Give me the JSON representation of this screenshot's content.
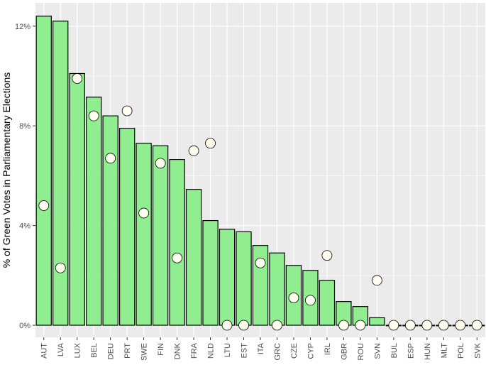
{
  "chart_data": {
    "type": "bar",
    "title": "",
    "xlabel": "",
    "ylabel": "% of Green Votes in Parliamentary Elections",
    "ylim": [
      0,
      13
    ],
    "yticks": [
      0,
      4,
      8,
      12
    ],
    "ytick_labels": [
      "0%",
      "4%",
      "8%",
      "12%"
    ],
    "grid": true,
    "categories": [
      "AUT",
      "LVA",
      "LUX",
      "BEL",
      "DEU",
      "PRT",
      "SWE",
      "FIN",
      "DNK",
      "FRA",
      "NLD",
      "LTU",
      "EST",
      "ITA",
      "GRC",
      "CZE",
      "CYP",
      "IRL",
      "GBR",
      "ROU",
      "SVN",
      "BUL",
      "ESP",
      "HUN",
      "MLT",
      "POL",
      "SVK"
    ],
    "series": [
      {
        "kind": "bar",
        "values": [
          12.4,
          12.2,
          10.1,
          9.15,
          8.4,
          7.9,
          7.3,
          7.2,
          6.65,
          5.45,
          4.2,
          3.85,
          3.75,
          3.2,
          2.9,
          2.4,
          2.2,
          1.8,
          0.95,
          0.75,
          0.3,
          0,
          0,
          0,
          0,
          0,
          0
        ]
      },
      {
        "kind": "point",
        "values": [
          4.8,
          2.3,
          9.9,
          8.4,
          6.7,
          8.6,
          4.5,
          6.5,
          2.7,
          7.0,
          7.3,
          0,
          0,
          2.5,
          0,
          1.1,
          1.0,
          2.8,
          0,
          0,
          1.8,
          0,
          0,
          0,
          0,
          0,
          0
        ]
      }
    ],
    "colors": {
      "bar_fill": "#90ee90",
      "bar_stroke": "#000000",
      "point_fill": "#fffff0",
      "point_stroke": "#000000",
      "panel_bg": "#ebebeb",
      "grid": "#ffffff"
    }
  }
}
